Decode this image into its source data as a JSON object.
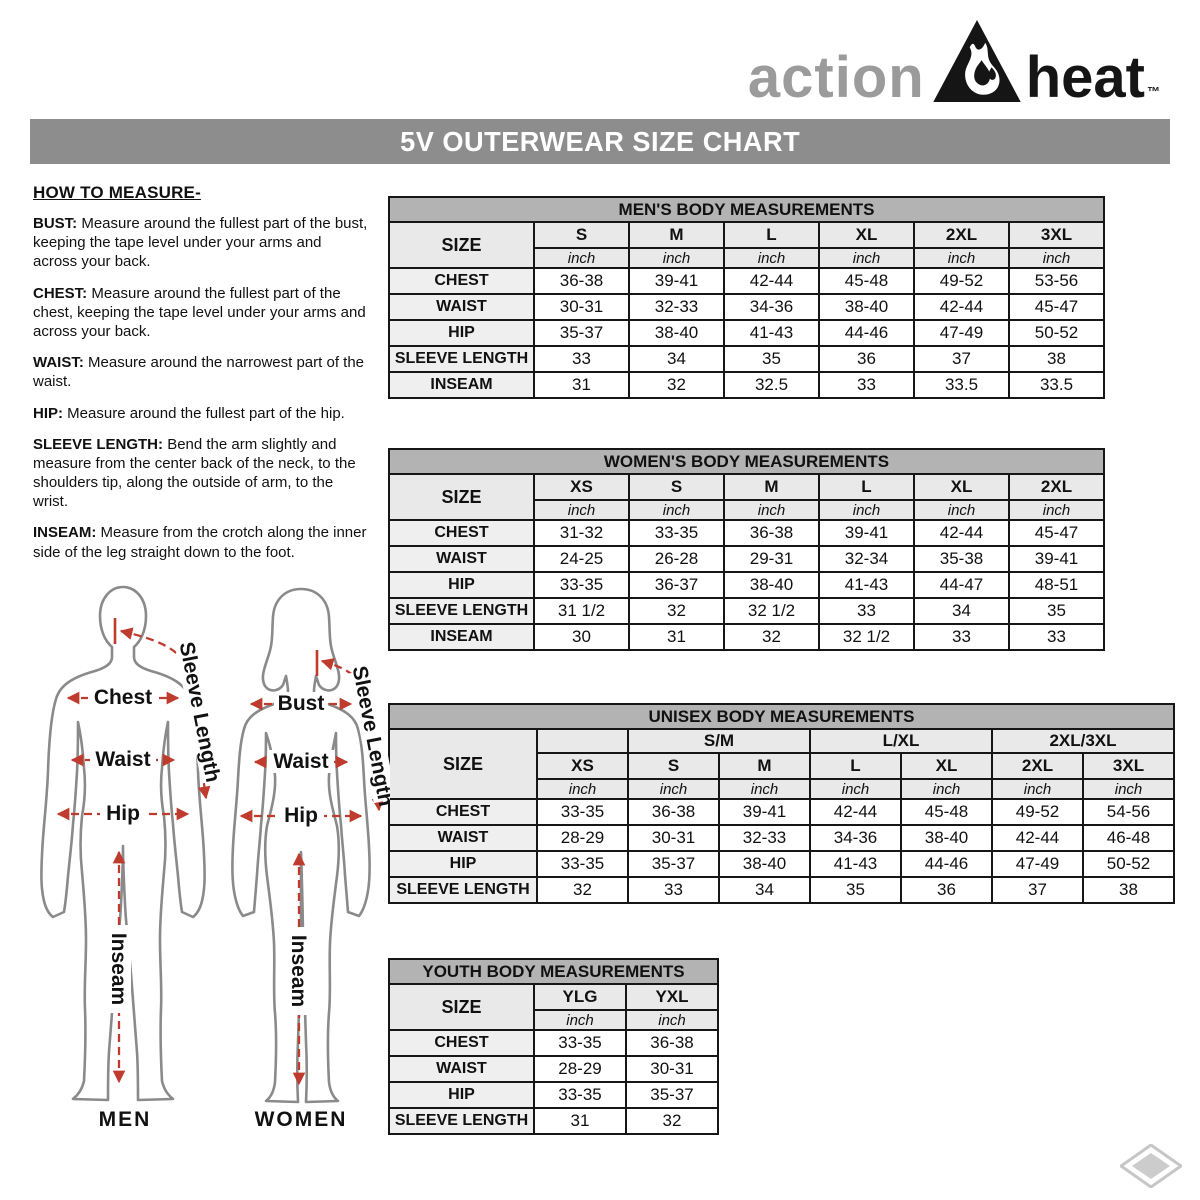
{
  "logo": {
    "action": "action",
    "heat": "heat",
    "tm": "™"
  },
  "title": "5V OUTERWEAR SIZE CHART",
  "how_to_measure": {
    "heading": "HOW TO MEASURE-",
    "items": [
      {
        "term": "BUST:",
        "text": "Measure around the fullest part of the bust, keeping the tape level under your arms and across your back."
      },
      {
        "term": "CHEST:",
        "text": "Measure around the fullest part of the chest, keeping the tape level under your arms and across your back."
      },
      {
        "term": "WAIST:",
        "text": "Measure around the narrowest part of the waist."
      },
      {
        "term": "HIP:",
        "text": "Measure around the fullest part of the hip."
      },
      {
        "term": "SLEEVE LENGTH:",
        "text": "Bend the arm slightly and measure from the center back of the neck, to the shoulders tip, along the outside of arm, to the wrist."
      },
      {
        "term": "INSEAM:",
        "text": "Measure from the crotch along the inner side of the leg straight down to the foot."
      }
    ]
  },
  "figure": {
    "men": {
      "chest": "Chest",
      "waist": "Waist",
      "hip": "Hip",
      "sleeve": "Sleeve Length",
      "inseam": "Inseam",
      "caption": "MEN"
    },
    "women": {
      "bust": "Bust",
      "waist": "Waist",
      "hip": "Hip",
      "sleeve": "Sleeve Length",
      "inseam": "Inseam",
      "caption": "WOMEN"
    }
  },
  "tables": {
    "mens": {
      "title": "MEN'S BODY MEASUREMENTS",
      "size_label": "SIZE",
      "unit": "inch",
      "sizes": [
        "S",
        "M",
        "L",
        "XL",
        "2XL",
        "3XL"
      ],
      "rows": [
        {
          "label": "CHEST",
          "values": [
            "36-38",
            "39-41",
            "42-44",
            "45-48",
            "49-52",
            "53-56"
          ]
        },
        {
          "label": "WAIST",
          "values": [
            "30-31",
            "32-33",
            "34-36",
            "38-40",
            "42-44",
            "45-47"
          ]
        },
        {
          "label": "HIP",
          "values": [
            "35-37",
            "38-40",
            "41-43",
            "44-46",
            "47-49",
            "50-52"
          ]
        },
        {
          "label": "SLEEVE LENGTH",
          "values": [
            "33",
            "34",
            "35",
            "36",
            "37",
            "38"
          ]
        },
        {
          "label": "INSEAM",
          "values": [
            "31",
            "32",
            "32.5",
            "33",
            "33.5",
            "33.5"
          ]
        }
      ]
    },
    "womens": {
      "title": "WOMEN'S BODY MEASUREMENTS",
      "size_label": "SIZE",
      "unit": "inch",
      "sizes": [
        "XS",
        "S",
        "M",
        "L",
        "XL",
        "2XL"
      ],
      "rows": [
        {
          "label": "CHEST",
          "values": [
            "31-32",
            "33-35",
            "36-38",
            "39-41",
            "42-44",
            "45-47"
          ]
        },
        {
          "label": "WAIST",
          "values": [
            "24-25",
            "26-28",
            "29-31",
            "32-34",
            "35-38",
            "39-41"
          ]
        },
        {
          "label": "HIP",
          "values": [
            "33-35",
            "36-37",
            "38-40",
            "41-43",
            "44-47",
            "48-51"
          ]
        },
        {
          "label": "SLEEVE LENGTH",
          "values": [
            "31 1/2",
            "32",
            "32 1/2",
            "33",
            "34",
            "35"
          ]
        },
        {
          "label": "INSEAM",
          "values": [
            "30",
            "31",
            "32",
            "32 1/2",
            "33",
            "33"
          ]
        }
      ]
    },
    "unisex": {
      "title": "UNISEX BODY MEASUREMENTS",
      "size_label": "SIZE",
      "unit": "inch",
      "groups": [
        {
          "label": "",
          "span": 1
        },
        {
          "label": "S/M",
          "span": 2
        },
        {
          "label": "L/XL",
          "span": 2
        },
        {
          "label": "2XL/3XL",
          "span": 2
        }
      ],
      "sizes": [
        "XS",
        "S",
        "M",
        "L",
        "XL",
        "2XL",
        "3XL"
      ],
      "rows": [
        {
          "label": "CHEST",
          "values": [
            "33-35",
            "36-38",
            "39-41",
            "42-44",
            "45-48",
            "49-52",
            "54-56"
          ]
        },
        {
          "label": "WAIST",
          "values": [
            "28-29",
            "30-31",
            "32-33",
            "34-36",
            "38-40",
            "42-44",
            "46-48"
          ]
        },
        {
          "label": "HIP",
          "values": [
            "33-35",
            "35-37",
            "38-40",
            "41-43",
            "44-46",
            "47-49",
            "50-52"
          ]
        },
        {
          "label": "SLEEVE LENGTH",
          "values": [
            "32",
            "33",
            "34",
            "35",
            "36",
            "37",
            "38"
          ]
        }
      ]
    },
    "youth": {
      "title": "YOUTH BODY MEASUREMENTS",
      "size_label": "SIZE",
      "unit": "inch",
      "sizes": [
        "YLG",
        "YXL"
      ],
      "rows": [
        {
          "label": "CHEST",
          "values": [
            "33-35",
            "36-38"
          ]
        },
        {
          "label": "WAIST",
          "values": [
            "28-29",
            "30-31"
          ]
        },
        {
          "label": "HIP",
          "values": [
            "33-35",
            "35-37"
          ]
        },
        {
          "label": "SLEEVE LENGTH",
          "values": [
            "31",
            "32"
          ]
        }
      ]
    }
  },
  "colors": {
    "title_bar_bg": "#8d8d8d",
    "table_title_bg": "#b3b3b3",
    "header_cell_bg": "#e9e9e9",
    "row_label_bg": "#efefef",
    "table_border": "#161616",
    "measure_arrow": "#bf3b2e",
    "silhouette_outline": "#8a8a8a",
    "logo_gray": "#9b9b9b",
    "logo_black": "#151515"
  }
}
